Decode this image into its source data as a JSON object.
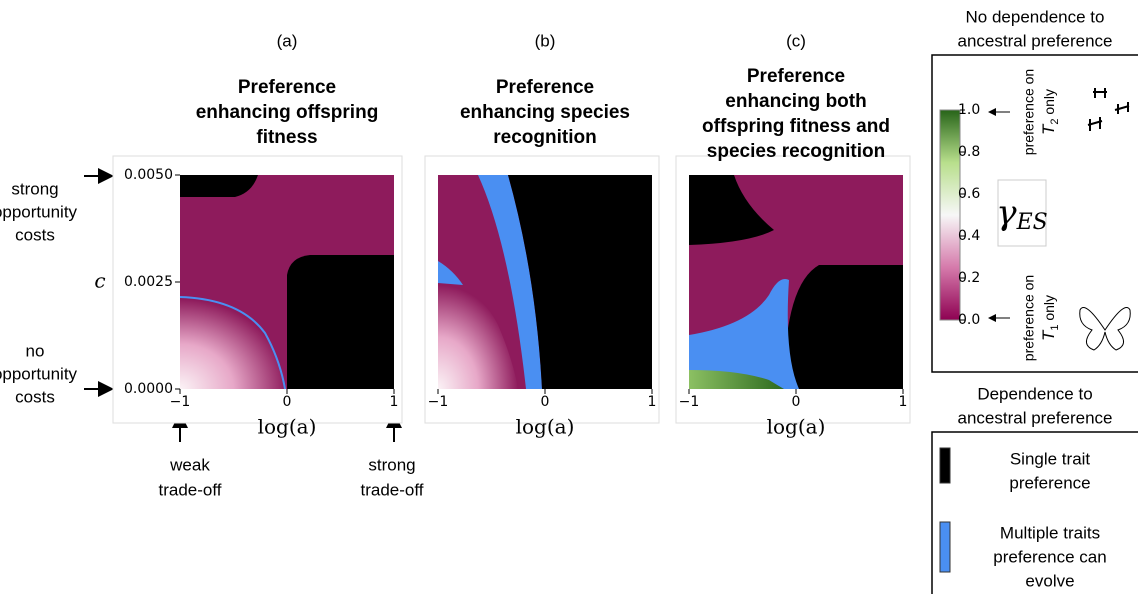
{
  "chart_data": [
    {
      "type": "heatmap",
      "label": "(a)",
      "title": [
        "Preference",
        "enhancing offspring",
        "fitness"
      ],
      "xlabel": "log(a)",
      "ylabel": "c",
      "xlim": [
        -1,
        1
      ],
      "ylim": [
        0,
        0.005
      ],
      "xticks": [
        {
          "value": -1,
          "label": "−1"
        },
        0,
        1
      ],
      "yticks": [
        {
          "value": 0,
          "label": "0.0000"
        },
        {
          "value": 0.0025,
          "label": "0.0025"
        },
        {
          "value": 0.005,
          "label": "0.0050"
        }
      ]
    },
    {
      "type": "heatmap",
      "label": "(b)",
      "title": [
        "Preference",
        "enhancing species",
        "recognition"
      ],
      "xlabel": "log(a)",
      "xlim": [
        -1,
        1
      ],
      "ylim": [
        0,
        0.005
      ],
      "xticks": [
        {
          "value": -1,
          "label": "−1"
        },
        0,
        1
      ]
    },
    {
      "type": "heatmap",
      "label": "(c)",
      "title": [
        "Preference",
        "enhancing both",
        "offspring fitness and",
        "species recognition"
      ],
      "xlabel": "log(a)",
      "xlim": [
        -1,
        1
      ],
      "ylim": [
        0,
        0.005
      ],
      "xticks": [
        {
          "value": -1,
          "label": "−1"
        },
        0,
        1
      ]
    }
  ],
  "annotations": {
    "strong_costs": [
      "strong",
      "opportunity",
      "costs"
    ],
    "no_costs": [
      "no",
      "opportunity",
      "costs"
    ],
    "weak_tradeoff": [
      "weak",
      "trade-off"
    ],
    "strong_tradeoff": [
      "strong",
      "trade-off"
    ]
  },
  "colorbar": {
    "symbol": "γ",
    "subscript": "ES",
    "lim": [
      0,
      1
    ],
    "ticks": [
      {
        "value": 0,
        "label": "0.0"
      },
      {
        "value": 0.2,
        "label": "0.2"
      },
      {
        "value": 0.4,
        "label": "0.4"
      },
      {
        "value": 0.6,
        "label": "0.6"
      },
      {
        "value": 0.8,
        "label": "0.8"
      },
      {
        "value": 1,
        "label": "1.0"
      }
    ]
  },
  "right_panel": {
    "top_title": [
      "No dependence to",
      "ancestral preference"
    ],
    "top_note": {
      "line1": "preference on",
      "symbol": "T",
      "sub": "2",
      "rest": " only"
    },
    "bottom_note": {
      "line1": "preference on",
      "symbol": "T",
      "sub": "1",
      "rest": " only"
    },
    "bottom_title": [
      "Dependence to",
      "ancestral preference"
    ],
    "legend": [
      {
        "color": "#000000",
        "label": [
          "Single trait",
          "preference"
        ]
      },
      {
        "color": "#4a8ff2",
        "label": [
          "Multiple traits",
          "preference can",
          "evolve"
        ]
      }
    ]
  }
}
